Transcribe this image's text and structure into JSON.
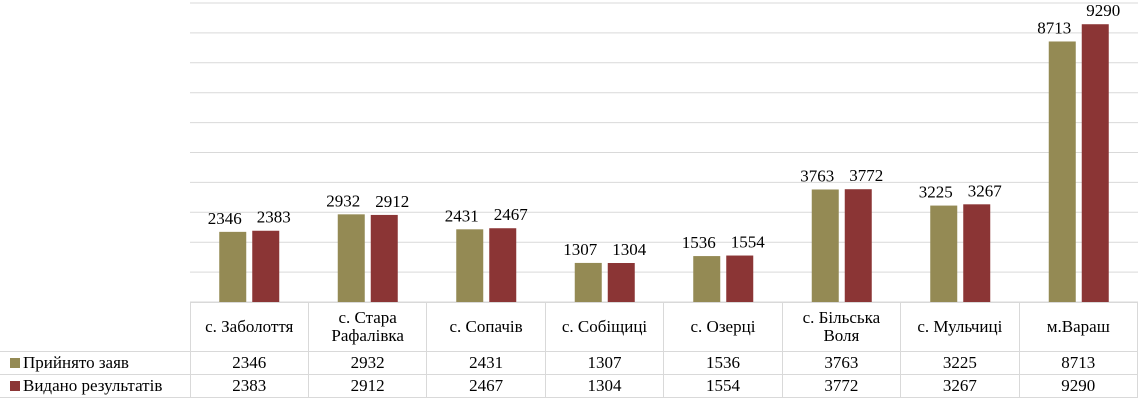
{
  "chart_data": {
    "type": "bar",
    "categories": [
      "с. Заболоття",
      "с. Стара Рафалівка",
      "с. Сопачів",
      "с. Собіщиці",
      "с. Озерці",
      "с. Більська Воля",
      "с. Мульчиці",
      "м.Вараш"
    ],
    "series": [
      {
        "name": "Прийнято заяв",
        "color": "#948a54",
        "values": [
          2346,
          2932,
          2431,
          1307,
          1536,
          3763,
          3225,
          8713
        ]
      },
      {
        "name": "Видано результатів",
        "color": "#8b3535",
        "values": [
          2383,
          2912,
          2467,
          1304,
          1554,
          3772,
          3267,
          9290
        ]
      }
    ],
    "ylim": [
      0,
      10000
    ],
    "yticks": [
      0,
      1000,
      2000,
      3000,
      4000,
      5000,
      6000,
      7000,
      8000,
      9000,
      10000
    ],
    "grid": true
  }
}
